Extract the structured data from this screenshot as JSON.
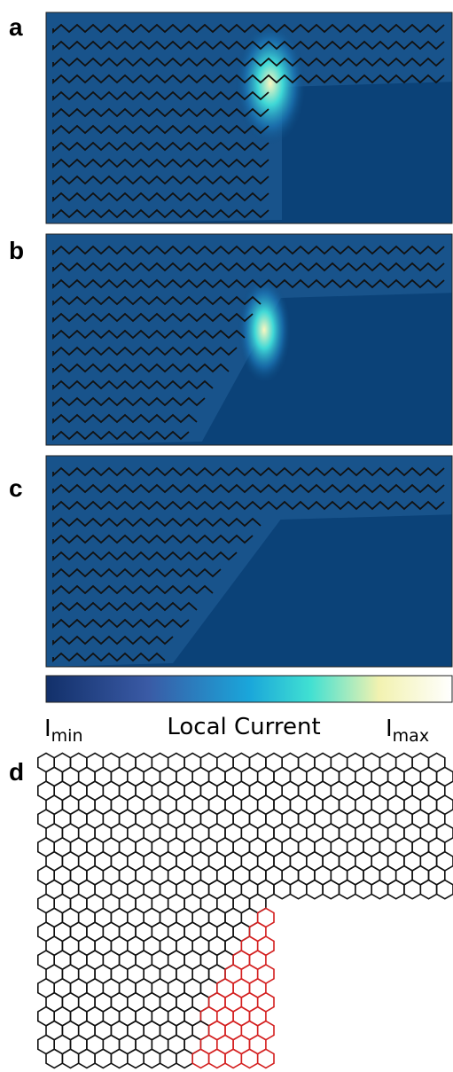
{
  "panels": [
    {
      "label": "a"
    },
    {
      "label": "b"
    },
    {
      "label": "c"
    },
    {
      "label": "d"
    }
  ],
  "colorbar": {
    "min_label": {
      "symbol": "I",
      "subscript": "min"
    },
    "title": "Local Current",
    "max_label": {
      "symbol": "I",
      "subscript": "max"
    }
  }
}
